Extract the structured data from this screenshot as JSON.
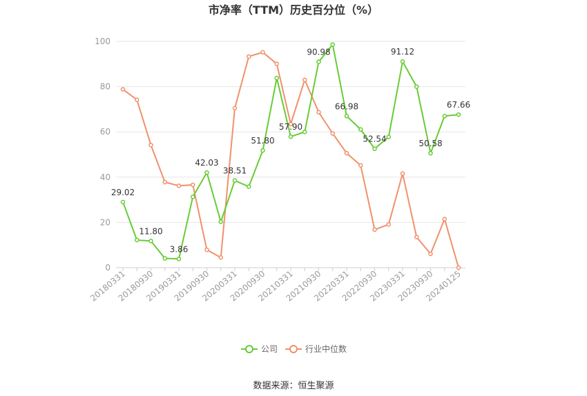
{
  "chart_data": {
    "type": "line",
    "title": "市净率（TTM）历史百分位（%）",
    "xlabel": "",
    "ylabel": "",
    "ylim": [
      0,
      100
    ],
    "yticks": [
      0,
      20,
      40,
      60,
      80,
      100
    ],
    "x": [
      "20180331",
      "20180630",
      "20180930",
      "20181231",
      "20190331",
      "20190630",
      "20190930",
      "20191231",
      "20200331",
      "20200630",
      "20200930",
      "20201231",
      "20210331",
      "20210630",
      "20210930",
      "20211231",
      "20220331",
      "20220630",
      "20220930",
      "20221231",
      "20230331",
      "20230630",
      "20230930",
      "20231231",
      "20240125"
    ],
    "xtick_labels": [
      "20180331",
      "20180930",
      "20190331",
      "20190930",
      "20200331",
      "20200930",
      "20210331",
      "20210930",
      "20220331",
      "20220930",
      "20230331",
      "20230930",
      "20240125"
    ],
    "series": [
      {
        "name": "公司",
        "color": "#66cc33",
        "values": [
          29.02,
          12.2,
          11.8,
          4.1,
          3.86,
          31.3,
          42.03,
          20.3,
          38.51,
          35.8,
          51.8,
          83.8,
          57.9,
          60.0,
          90.98,
          98.6,
          66.98,
          61.1,
          52.54,
          57.8,
          91.12,
          80.0,
          50.58,
          67.0,
          67.66
        ],
        "data_labels": [
          "29.02",
          "",
          "11.80",
          "",
          "3.86",
          "",
          "42.03",
          "",
          "38.51",
          "",
          "51.80",
          "",
          "57.90",
          "",
          "90.98",
          "",
          "66.98",
          "",
          "52.54",
          "",
          "91.12",
          "",
          "50.58",
          "",
          "67.66"
        ]
      },
      {
        "name": "行业中位数",
        "color": "#f0906a",
        "values": [
          78.8,
          74.2,
          54.2,
          37.8,
          36.2,
          36.6,
          7.9,
          4.5,
          70.5,
          93.3,
          95.2,
          90.1,
          63.5,
          83.0,
          68.7,
          59.3,
          50.6,
          45.2,
          16.8,
          19.1,
          41.6,
          13.5,
          6.1,
          21.5,
          0.0
        ],
        "data_labels": []
      }
    ],
    "legend": {
      "position": "bottom",
      "entries": [
        "公司",
        "行业中位数"
      ]
    },
    "grid": true
  },
  "source_text": "数据来源：恒生聚源"
}
